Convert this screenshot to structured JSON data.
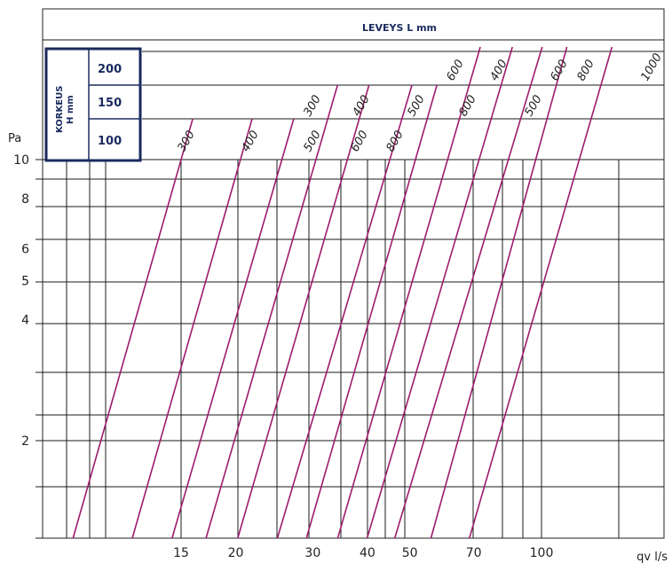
{
  "chart_data": {
    "type": "line",
    "title": "LEVEYS L mm",
    "ylabel": "Pa",
    "xlabel": "qv l/s",
    "x_scale": "log",
    "y_scale": "log",
    "x_ticks": [
      15,
      20,
      30,
      40,
      50,
      70,
      100
    ],
    "y_ticks": [
      2,
      4,
      5,
      6,
      8,
      10
    ],
    "legend": {
      "title": "KORKEUS H mm",
      "rows": [
        "200",
        "150",
        "100"
      ]
    },
    "series_labels": [
      {
        "text": "300",
        "group": "100"
      },
      {
        "text": "400",
        "group": "100"
      },
      {
        "text": "500",
        "group": "100"
      },
      {
        "text": "600",
        "group": "100"
      },
      {
        "text": "800",
        "group": "100"
      },
      {
        "text": "300",
        "group": "150"
      },
      {
        "text": "400",
        "group": "150"
      },
      {
        "text": "500",
        "group": "150"
      },
      {
        "text": "600",
        "group": "150"
      },
      {
        "text": "800",
        "group": "150"
      },
      {
        "text": "400",
        "group": "200"
      },
      {
        "text": "500",
        "group": "200"
      },
      {
        "text": "600",
        "group": "200"
      },
      {
        "text": "800",
        "group": "200"
      },
      {
        "text": "1000",
        "group": "200"
      }
    ],
    "series": [
      {
        "x": [
          8.6,
          15.0
        ],
        "y": [
          1.2,
          10
        ]
      },
      {
        "x": [
          11.2,
          20.5
        ],
        "y": [
          1.0,
          10
        ]
      },
      {
        "x": [
          13.8,
          25.5
        ],
        "y": [
          1.0,
          10
        ]
      },
      {
        "x": [
          16.5,
          30.5
        ],
        "y": [
          1.0,
          10
        ]
      },
      {
        "x": [
          19.5,
          36.0
        ],
        "y": [
          1.0,
          10
        ]
      },
      {
        "x": [
          24.0,
          45.0
        ],
        "y": [
          1.0,
          10
        ]
      },
      {
        "x": [
          28.0,
          51.5
        ],
        "y": [
          1.0,
          10
        ]
      },
      {
        "x": [
          33.0,
          61.0
        ],
        "y": [
          1.0,
          10
        ]
      },
      {
        "x": [
          38.5,
          72.0
        ],
        "y": [
          1.0,
          10
        ]
      },
      {
        "x": [
          44.5,
          84.0
        ],
        "y": [
          1.0,
          10
        ]
      },
      {
        "x": [
          54.0,
          97.0
        ],
        "y": [
          1.0,
          10
        ]
      },
      {
        "x": [
          66.0,
          122.0
        ],
        "y": [
          1.0,
          10
        ]
      }
    ]
  }
}
